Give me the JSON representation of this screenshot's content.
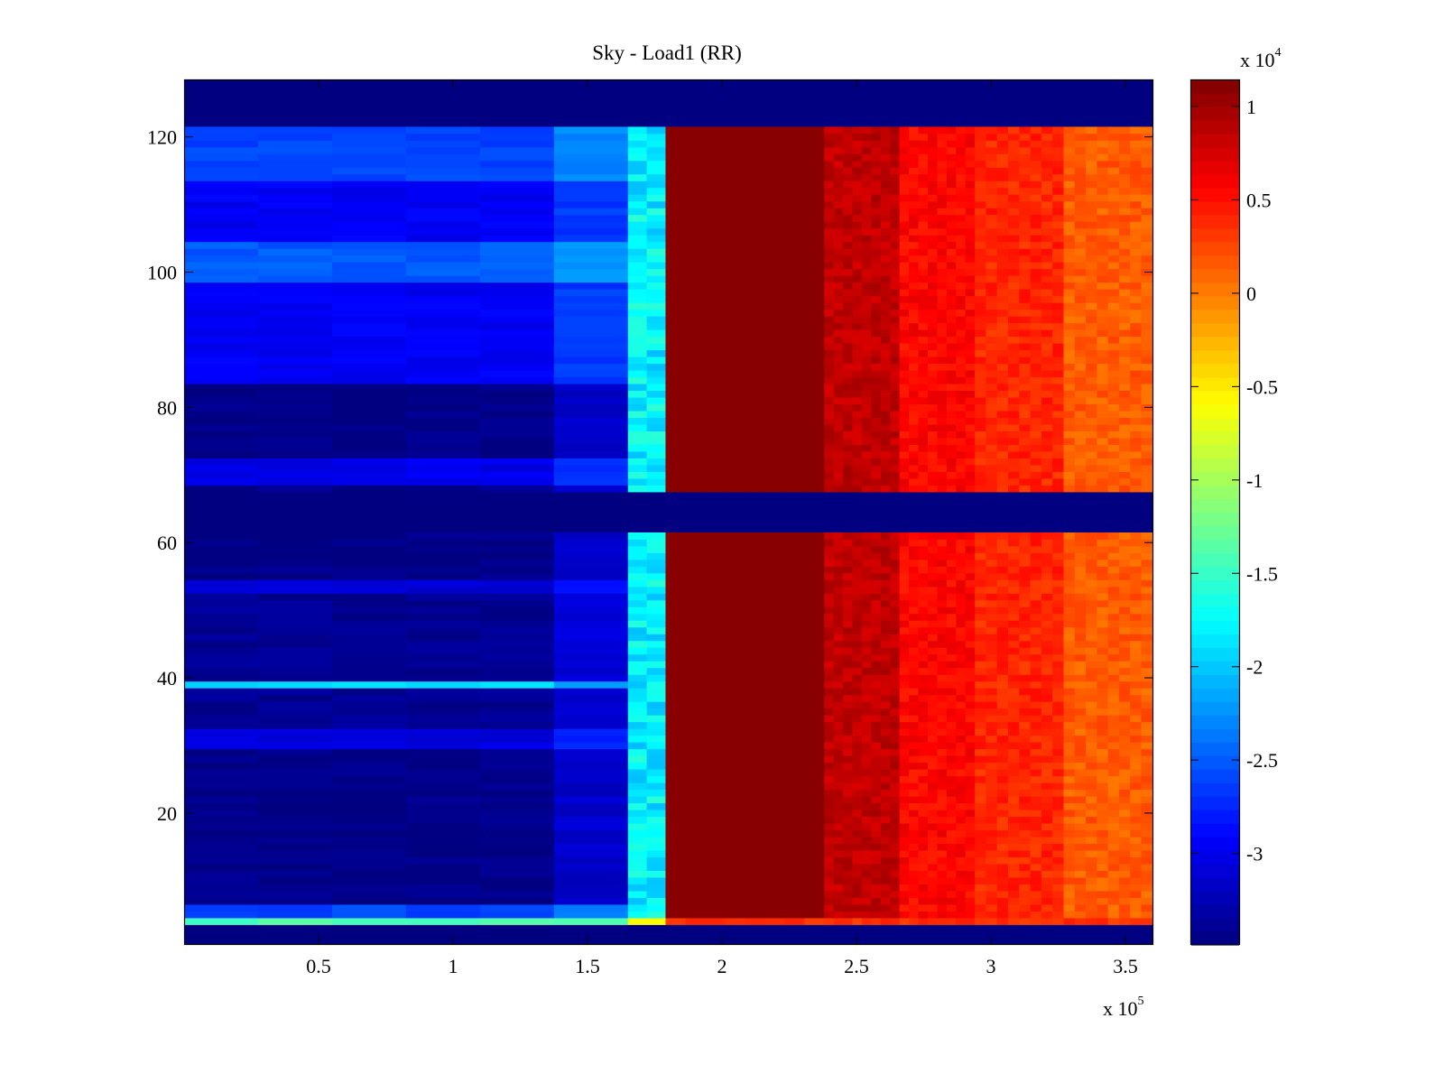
{
  "chart_data": {
    "type": "heatmap",
    "title": "Sky - Load1 (RR)",
    "xlabel": "",
    "ylabel": "",
    "x_multiplier": "x 10",
    "x_multiplier_exp": "5",
    "x_range": [
      0,
      3.604
    ],
    "x_ticks": [
      0.5,
      1,
      1.5,
      2,
      2.5,
      3,
      3.5
    ],
    "x_tick_labels": [
      "0.5",
      "1",
      "1.5",
      "2",
      "2.5",
      "3",
      "3.5"
    ],
    "y_range": [
      0.5,
      128.5
    ],
    "y_ticks": [
      20,
      40,
      60,
      80,
      100,
      120
    ],
    "y_tick_labels": [
      "20",
      "40",
      "60",
      "80",
      "100",
      "120"
    ],
    "colormap": "jet",
    "colorbar": {
      "multiplier": "x 10",
      "multiplier_exp": "4",
      "clim": [
        -3.49,
        1.145
      ],
      "ticks": [
        1,
        0.5,
        0,
        -0.5,
        -1,
        -1.5,
        -2,
        -2.5,
        -3
      ],
      "tick_labels": [
        "1",
        "0.5",
        "0",
        "-0.5",
        "-1",
        "-1.5",
        "-2",
        "-2.5",
        "-3"
      ]
    },
    "empty_rows": [
      [
        1,
        3
      ],
      [
        62,
        67
      ],
      [
        122,
        128
      ]
    ],
    "column_zones": [
      {
        "x": [
          0,
          1.65
        ],
        "value": "row_dependent"
      },
      {
        "x": [
          1.65,
          1.79
        ],
        "value": -1.8
      },
      {
        "x": [
          1.79,
          2.38
        ],
        "value": 1.1
      },
      {
        "x": [
          2.38,
          2.66
        ],
        "value": 0.85
      },
      {
        "x": [
          2.66,
          2.94
        ],
        "value": 0.55
      },
      {
        "x": [
          2.94,
          3.27
        ],
        "value": 0.4
      },
      {
        "x": [
          3.27,
          3.6
        ],
        "value": 0.15
      }
    ],
    "left_zone_row_bands": [
      {
        "rows": [
          4,
          4
        ],
        "value": -1.4
      },
      {
        "rows": [
          5,
          6
        ],
        "value": -2.6
      },
      {
        "rows": [
          7,
          29
        ],
        "value": -3.45
      },
      {
        "rows": [
          30,
          32
        ],
        "value": -3.05
      },
      {
        "rows": [
          33,
          38
        ],
        "value": -3.4
      },
      {
        "rows": [
          39,
          39
        ],
        "value": -1.9
      },
      {
        "rows": [
          40,
          52
        ],
        "value": -3.4
      },
      {
        "rows": [
          53,
          54
        ],
        "value": -3.1
      },
      {
        "rows": [
          55,
          61
        ],
        "value": -3.45
      },
      {
        "rows": [
          68,
          68
        ],
        "value": -3.45
      },
      {
        "rows": [
          69,
          72
        ],
        "value": -3.0
      },
      {
        "rows": [
          73,
          83
        ],
        "value": -3.45
      },
      {
        "rows": [
          84,
          98
        ],
        "value": -2.95
      },
      {
        "rows": [
          99,
          104
        ],
        "value": -2.5
      },
      {
        "rows": [
          105,
          113
        ],
        "value": -2.95
      },
      {
        "rows": [
          114,
          121
        ],
        "value": -2.6
      }
    ],
    "row4_values": {
      "middle_zone": -0.6,
      "right_zones": 0.35
    }
  }
}
